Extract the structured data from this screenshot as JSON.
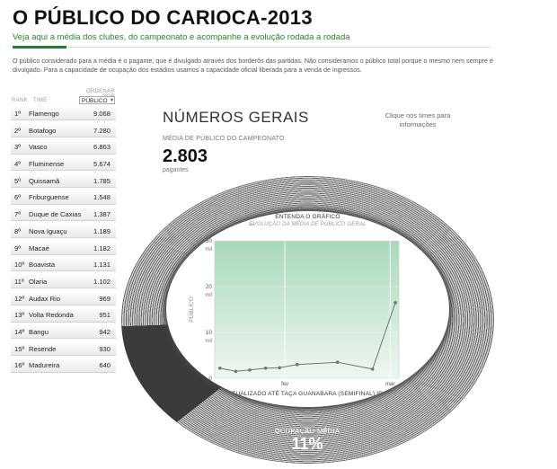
{
  "header": {
    "title": "O PÚBLICO DO CARIOCA-2013",
    "subtitle": "Veja aqui a média dos clubes, do campeonato e acompanhe a evolução rodada a rodada",
    "note": "O público considerado para a média é o pagante, que é divulgado através dos borderôs das partidas. Não consideramos o público total porque o mesmo nem sempre é divulgado. Para a capacidade de ocupação dos estádios usamos a capacidade oficial liberada para a venda de ingressos."
  },
  "ranking": {
    "rank_header": "RANK",
    "team_header": "TIME",
    "sort_label": "ORDENAR POR",
    "sort_value": "PÚBLICO",
    "items": [
      {
        "pos": "1º",
        "team": "Flamengo",
        "value": "9.068"
      },
      {
        "pos": "2º",
        "team": "Botafogo",
        "value": "7.280"
      },
      {
        "pos": "3º",
        "team": "Vasco",
        "value": "6.863"
      },
      {
        "pos": "4º",
        "team": "Fluminense",
        "value": "5.674"
      },
      {
        "pos": "5º",
        "team": "Quissamã",
        "value": "1.785"
      },
      {
        "pos": "6º",
        "team": "Friburguense",
        "value": "1.548"
      },
      {
        "pos": "7º",
        "team": "Duque de Caxias",
        "value": "1.387"
      },
      {
        "pos": "8º",
        "team": "Nova Iguaçu",
        "value": "1.189"
      },
      {
        "pos": "9º",
        "team": "Macaé",
        "value": "1.182"
      },
      {
        "pos": "10º",
        "team": "Boavista",
        "value": "1.131"
      },
      {
        "pos": "11º",
        "team": "Olaria",
        "value": "1.102"
      },
      {
        "pos": "12º",
        "team": "Audax Rio",
        "value": "969"
      },
      {
        "pos": "13º",
        "team": "Volta Redonda",
        "value": "951"
      },
      {
        "pos": "14º",
        "team": "Bangu",
        "value": "942"
      },
      {
        "pos": "15º",
        "team": "Resende",
        "value": "930"
      },
      {
        "pos": "16º",
        "team": "Madureira",
        "value": "640"
      }
    ]
  },
  "main": {
    "title": "NÚMEROS GERAIS",
    "click_hint": "Clique nos times para informações",
    "avg_label": "MÉDIA DE PÚBLICO DO CAMPEONATO",
    "avg_value": "2.803",
    "avg_unit": "pagantes",
    "occupancy_label": "OCUPAÇÃO MÉDIA",
    "occupancy_value": "11%",
    "occupancy_fraction": 0.11
  },
  "chart_data": {
    "type": "line",
    "title": "ENTENDA O GRÁFICO",
    "legend": [
      "EVOLUÇÃO DA MÉDIA DE PÚBLICO GERAL"
    ],
    "ylabel": "PÚBLICO",
    "xlabel": "ATUALIZADO ATÉ TAÇA GUANABARA (SEMIFINAL) IDA",
    "ylim": [
      0,
      30
    ],
    "y_ticks": [
      {
        "value": 30,
        "label": "30",
        "unit": "mil"
      },
      {
        "value": 20,
        "label": "20",
        "unit": "mil"
      },
      {
        "value": 10,
        "label": "10",
        "unit": "mil"
      },
      {
        "value": 0,
        "label": "0",
        "unit": ""
      }
    ],
    "x_ticks": [
      {
        "pos": 4,
        "label": "fev"
      },
      {
        "pos": 10,
        "label": "mar"
      }
    ],
    "xlim": [
      0,
      10.5
    ],
    "series": [
      {
        "x": [
          0.3,
          1.2,
          2.0,
          2.9,
          3.7,
          4.7,
          7.0,
          9.0,
          10.3
        ],
        "y": [
          2.2,
          1.5,
          1.8,
          2.2,
          2.3,
          3.0,
          3.5,
          2.0,
          16.5
        ]
      }
    ],
    "colors": {
      "line": "#6a7a6e",
      "fill_top": "#a9d9ba",
      "fill_bottom": "#eef7f1"
    }
  },
  "colors": {
    "accent": "#1e7e34",
    "subtitle": "#2e7d32"
  }
}
